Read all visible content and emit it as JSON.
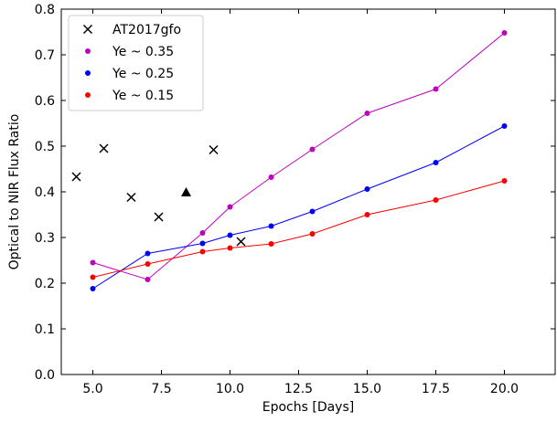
{
  "chart_data": {
    "type": "line",
    "xlabel": "Epochs [Days]",
    "ylabel": "Optical to NIR Flux Ratio",
    "xlim": [
      3.85,
      21.85
    ],
    "ylim": [
      0,
      0.8
    ],
    "xticks": [
      {
        "value": 5,
        "label": "5.0"
      },
      {
        "value": 7.5,
        "label": "7.5"
      },
      {
        "value": 10,
        "label": "10.0"
      },
      {
        "value": 12.5,
        "label": "12.5"
      },
      {
        "value": 15,
        "label": "15.0"
      },
      {
        "value": 17.5,
        "label": "17.5"
      },
      {
        "value": 20,
        "label": "20.0"
      }
    ],
    "yticks": [
      {
        "value": 0,
        "label": "0.0"
      },
      {
        "value": 0.1,
        "label": "0.1"
      },
      {
        "value": 0.2,
        "label": "0.2"
      },
      {
        "value": 0.3,
        "label": "0.3"
      },
      {
        "value": 0.4,
        "label": "0.4"
      },
      {
        "value": 0.5,
        "label": "0.5"
      },
      {
        "value": 0.6,
        "label": "0.6"
      },
      {
        "value": 0.7,
        "label": "0.7"
      },
      {
        "value": 0.8,
        "label": "0.8"
      }
    ],
    "legend": "upper left",
    "series": [
      {
        "name": "AT2017gfo",
        "color": "#000000",
        "marker": "x",
        "line": false,
        "x": [
          4.4,
          5.4,
          6.4,
          7.4,
          9.4,
          10.4
        ],
        "values": [
          0.433,
          0.495,
          0.388,
          0.345,
          0.492,
          0.291
        ]
      },
      {
        "color": "#000000",
        "marker": "triangle",
        "line": false,
        "x": [
          8.4
        ],
        "values": [
          0.398
        ]
      },
      {
        "name": "Ye ~ 0.35",
        "color": "#bf00bf",
        "marker": "dot",
        "line": true,
        "x": [
          5,
          7,
          9,
          10,
          11.5,
          13,
          15,
          17.5,
          20
        ],
        "values": [
          0.245,
          0.208,
          0.31,
          0.367,
          0.432,
          0.493,
          0.572,
          0.625,
          0.748
        ]
      },
      {
        "name": "Ye ~ 0.25",
        "color": "#0000ff",
        "marker": "dot",
        "line": true,
        "x": [
          5,
          7,
          9,
          10,
          11.5,
          13,
          15,
          17.5,
          20
        ],
        "values": [
          0.188,
          0.265,
          0.287,
          0.305,
          0.325,
          0.357,
          0.406,
          0.464,
          0.544
        ]
      },
      {
        "name": "Ye ~ 0.15",
        "color": "#ff0000",
        "marker": "dot",
        "line": true,
        "x": [
          5,
          7,
          9,
          10,
          11.5,
          13,
          15,
          17.5,
          20
        ],
        "values": [
          0.213,
          0.242,
          0.269,
          0.277,
          0.286,
          0.308,
          0.35,
          0.382,
          0.424
        ]
      }
    ]
  }
}
